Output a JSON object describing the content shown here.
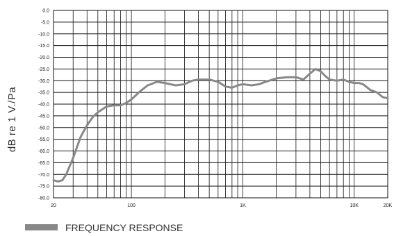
{
  "chart_data": {
    "type": "line",
    "ylabel": "dB re 1 V./Pa",
    "xscale": "log",
    "xlim": [
      20,
      20000
    ],
    "ylim": [
      -80,
      0
    ],
    "y_ticks": [
      "0.0",
      "-5.0",
      "-10.0",
      "-15.0",
      "-20.0",
      "-25.0",
      "-30.0",
      "-35.0",
      "-40.0",
      "-45.0",
      "-50.0",
      "-55.0",
      "-60.0",
      "-65.0",
      "-70.0",
      "-75.0",
      "-80.0"
    ],
    "x_tick_labels": [
      {
        "value": 20,
        "label": "20"
      },
      {
        "value": 100,
        "label": "100"
      },
      {
        "value": 1000,
        "label": "1K"
      },
      {
        "value": 10000,
        "label": "10K"
      },
      {
        "value": 20000,
        "label": "20K"
      }
    ],
    "grid": true,
    "legend_position": "bottom-left",
    "series": [
      {
        "name": "FREQUENCY RESPONSE",
        "color": "#888888",
        "points": [
          [
            20,
            -72.5
          ],
          [
            22,
            -73
          ],
          [
            24,
            -72.5
          ],
          [
            26,
            -70
          ],
          [
            30,
            -63
          ],
          [
            35,
            -54
          ],
          [
            40,
            -49
          ],
          [
            45,
            -45.5
          ],
          [
            50,
            -43.5
          ],
          [
            60,
            -41
          ],
          [
            70,
            -40.5
          ],
          [
            80,
            -40.5
          ],
          [
            90,
            -39.5
          ],
          [
            100,
            -38
          ],
          [
            120,
            -34.5
          ],
          [
            140,
            -32
          ],
          [
            170,
            -30.5
          ],
          [
            200,
            -31
          ],
          [
            250,
            -32
          ],
          [
            300,
            -31.5
          ],
          [
            350,
            -30
          ],
          [
            400,
            -29.5
          ],
          [
            500,
            -29.5
          ],
          [
            600,
            -30.5
          ],
          [
            700,
            -32.5
          ],
          [
            800,
            -33
          ],
          [
            900,
            -32
          ],
          [
            1000,
            -31.5
          ],
          [
            1200,
            -32
          ],
          [
            1400,
            -31.5
          ],
          [
            1600,
            -30.5
          ],
          [
            2000,
            -29
          ],
          [
            2500,
            -28.5
          ],
          [
            3000,
            -28.5
          ],
          [
            3500,
            -29.5
          ],
          [
            4000,
            -27
          ],
          [
            4500,
            -25
          ],
          [
            5000,
            -26
          ],
          [
            5500,
            -28
          ],
          [
            6000,
            -29.5
          ],
          [
            7000,
            -30
          ],
          [
            8000,
            -29.5
          ],
          [
            9000,
            -30.5
          ],
          [
            10000,
            -31
          ],
          [
            11000,
            -31
          ],
          [
            12000,
            -31.5
          ],
          [
            14000,
            -34
          ],
          [
            15000,
            -34.5
          ],
          [
            16000,
            -35
          ],
          [
            18000,
            -37
          ],
          [
            20000,
            -37.5
          ]
        ]
      }
    ]
  }
}
